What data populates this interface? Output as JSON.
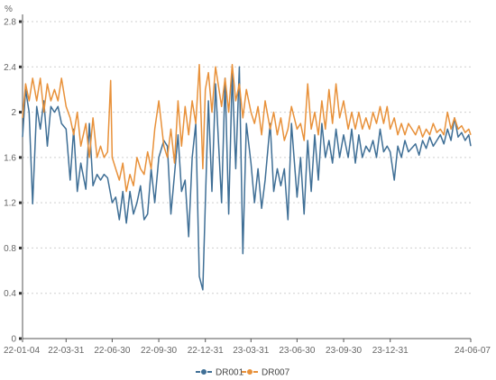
{
  "chart_data": {
    "type": "line",
    "title": "",
    "xlabel": "",
    "ylabel": "%",
    "ylim": [
      0,
      2.8
    ],
    "y_ticks": [
      "0",
      "0.4",
      "0.8",
      "1.2",
      "1.6",
      "2",
      "2.4",
      "2.8"
    ],
    "x_range": [
      "2022-01-04",
      "2024-06-07"
    ],
    "x_ticks": [
      "22-01-04",
      "22-03-31",
      "22-06-30",
      "22-09-30",
      "22-12-31",
      "23-03-31",
      "23-06-30",
      "23-09-30",
      "23-12-31",
      "24-06-07"
    ],
    "grid": "horizontal dashed",
    "legend_position": "bottom-center",
    "series": [
      {
        "name": "DR001",
        "color": "#3f6f96",
        "points": [
          [
            "2022-01-04",
            1.78
          ],
          [
            "2022-01-10",
            2.2
          ],
          [
            "2022-01-17",
            2.0
          ],
          [
            "2022-01-24",
            1.19
          ],
          [
            "2022-02-01",
            2.05
          ],
          [
            "2022-02-08",
            1.85
          ],
          [
            "2022-02-15",
            2.1
          ],
          [
            "2022-02-22",
            1.7
          ],
          [
            "2022-03-01",
            2.05
          ],
          [
            "2022-03-08",
            2.0
          ],
          [
            "2022-03-15",
            2.05
          ],
          [
            "2022-03-22",
            1.9
          ],
          [
            "2022-03-31",
            1.85
          ],
          [
            "2022-04-08",
            1.4
          ],
          [
            "2022-04-15",
            1.85
          ],
          [
            "2022-04-22",
            1.3
          ],
          [
            "2022-04-29",
            1.55
          ],
          [
            "2022-05-09",
            1.32
          ],
          [
            "2022-05-16",
            1.9
          ],
          [
            "2022-05-23",
            1.35
          ],
          [
            "2022-05-31",
            1.45
          ],
          [
            "2022-06-07",
            1.4
          ],
          [
            "2022-06-14",
            1.45
          ],
          [
            "2022-06-21",
            1.42
          ],
          [
            "2022-06-30",
            1.2
          ],
          [
            "2022-07-07",
            1.25
          ],
          [
            "2022-07-14",
            1.05
          ],
          [
            "2022-07-21",
            1.3
          ],
          [
            "2022-07-28",
            1.02
          ],
          [
            "2022-08-04",
            1.3
          ],
          [
            "2022-08-11",
            1.1
          ],
          [
            "2022-08-18",
            1.2
          ],
          [
            "2022-08-25",
            1.35
          ],
          [
            "2022-09-01",
            1.05
          ],
          [
            "2022-09-08",
            1.1
          ],
          [
            "2022-09-15",
            1.5
          ],
          [
            "2022-09-22",
            1.2
          ],
          [
            "2022-09-30",
            1.6
          ],
          [
            "2022-10-10",
            1.75
          ],
          [
            "2022-10-17",
            1.7
          ],
          [
            "2022-10-24",
            1.1
          ],
          [
            "2022-10-31",
            1.45
          ],
          [
            "2022-11-07",
            1.8
          ],
          [
            "2022-11-14",
            1.3
          ],
          [
            "2022-11-21",
            1.4
          ],
          [
            "2022-11-28",
            0.9
          ],
          [
            "2022-12-05",
            1.6
          ],
          [
            "2022-12-12",
            1.9
          ],
          [
            "2022-12-19",
            0.55
          ],
          [
            "2022-12-26",
            0.43
          ],
          [
            "2022-12-31",
            1.2
          ],
          [
            "2023-01-06",
            2.1
          ],
          [
            "2023-01-13",
            1.3
          ],
          [
            "2023-01-20",
            2.25
          ],
          [
            "2023-02-01",
            1.2
          ],
          [
            "2023-02-08",
            2.3
          ],
          [
            "2023-02-15",
            1.1
          ],
          [
            "2023-02-22",
            2.35
          ],
          [
            "2023-03-01",
            1.5
          ],
          [
            "2023-03-08",
            2.4
          ],
          [
            "2023-03-15",
            0.75
          ],
          [
            "2023-03-22",
            1.9
          ],
          [
            "2023-03-31",
            1.55
          ],
          [
            "2023-04-07",
            1.2
          ],
          [
            "2023-04-14",
            1.5
          ],
          [
            "2023-04-21",
            1.15
          ],
          [
            "2023-04-28",
            1.4
          ],
          [
            "2023-05-08",
            1.9
          ],
          [
            "2023-05-15",
            1.3
          ],
          [
            "2023-05-22",
            1.5
          ],
          [
            "2023-05-29",
            1.35
          ],
          [
            "2023-06-05",
            1.5
          ],
          [
            "2023-06-12",
            1.05
          ],
          [
            "2023-06-19",
            1.9
          ],
          [
            "2023-06-30",
            1.25
          ],
          [
            "2023-07-07",
            1.6
          ],
          [
            "2023-07-14",
            1.1
          ],
          [
            "2023-07-21",
            1.75
          ],
          [
            "2023-07-28",
            1.3
          ],
          [
            "2023-08-04",
            1.8
          ],
          [
            "2023-08-11",
            1.4
          ],
          [
            "2023-08-18",
            1.9
          ],
          [
            "2023-08-25",
            1.6
          ],
          [
            "2023-09-01",
            1.75
          ],
          [
            "2023-09-08",
            1.55
          ],
          [
            "2023-09-15",
            1.85
          ],
          [
            "2023-09-22",
            1.6
          ],
          [
            "2023-09-30",
            1.8
          ],
          [
            "2023-10-09",
            1.6
          ],
          [
            "2023-10-16",
            1.85
          ],
          [
            "2023-10-23",
            1.55
          ],
          [
            "2023-10-30",
            1.8
          ],
          [
            "2023-11-06",
            1.6
          ],
          [
            "2023-11-13",
            1.7
          ],
          [
            "2023-11-20",
            1.65
          ],
          [
            "2023-11-27",
            1.75
          ],
          [
            "2023-12-04",
            1.6
          ],
          [
            "2023-12-11",
            1.85
          ],
          [
            "2023-12-18",
            1.65
          ],
          [
            "2023-12-25",
            1.7
          ],
          [
            "2023-12-31",
            1.65
          ],
          [
            "2024-01-08",
            1.4
          ],
          [
            "2024-01-15",
            1.7
          ],
          [
            "2024-01-22",
            1.6
          ],
          [
            "2024-01-29",
            1.75
          ],
          [
            "2024-02-05",
            1.65
          ],
          [
            "2024-02-19",
            1.72
          ],
          [
            "2024-02-26",
            1.62
          ],
          [
            "2024-03-04",
            1.75
          ],
          [
            "2024-03-11",
            1.68
          ],
          [
            "2024-03-18",
            1.78
          ],
          [
            "2024-03-25",
            1.7
          ],
          [
            "2024-04-01",
            1.75
          ],
          [
            "2024-04-08",
            1.8
          ],
          [
            "2024-04-15",
            1.72
          ],
          [
            "2024-04-22",
            1.85
          ],
          [
            "2024-04-29",
            1.75
          ],
          [
            "2024-05-06",
            1.95
          ],
          [
            "2024-05-13",
            1.78
          ],
          [
            "2024-05-20",
            1.82
          ],
          [
            "2024-05-27",
            1.75
          ],
          [
            "2024-06-03",
            1.8
          ],
          [
            "2024-06-07",
            1.7
          ]
        ]
      },
      {
        "name": "DR007",
        "color": "#e8913a",
        "points": [
          [
            "2022-01-04",
            1.95
          ],
          [
            "2022-01-10",
            2.25
          ],
          [
            "2022-01-17",
            2.1
          ],
          [
            "2022-01-24",
            2.3
          ],
          [
            "2022-02-01",
            2.1
          ],
          [
            "2022-02-08",
            2.3
          ],
          [
            "2022-02-15",
            2.0
          ],
          [
            "2022-02-22",
            2.25
          ],
          [
            "2022-03-01",
            2.1
          ],
          [
            "2022-03-08",
            2.2
          ],
          [
            "2022-03-15",
            2.1
          ],
          [
            "2022-03-22",
            2.3
          ],
          [
            "2022-03-31",
            2.05
          ],
          [
            "2022-04-08",
            1.95
          ],
          [
            "2022-04-15",
            1.8
          ],
          [
            "2022-04-22",
            2.0
          ],
          [
            "2022-04-29",
            1.7
          ],
          [
            "2022-05-09",
            1.9
          ],
          [
            "2022-05-16",
            1.6
          ],
          [
            "2022-05-23",
            1.95
          ],
          [
            "2022-05-31",
            1.6
          ],
          [
            "2022-06-07",
            1.7
          ],
          [
            "2022-06-14",
            1.6
          ],
          [
            "2022-06-21",
            1.65
          ],
          [
            "2022-06-27",
            2.28
          ],
          [
            "2022-06-30",
            1.6
          ],
          [
            "2022-07-07",
            1.5
          ],
          [
            "2022-07-14",
            1.4
          ],
          [
            "2022-07-21",
            1.55
          ],
          [
            "2022-07-28",
            1.3
          ],
          [
            "2022-08-04",
            1.45
          ],
          [
            "2022-08-11",
            1.35
          ],
          [
            "2022-08-18",
            1.6
          ],
          [
            "2022-08-25",
            1.5
          ],
          [
            "2022-09-01",
            1.45
          ],
          [
            "2022-09-08",
            1.65
          ],
          [
            "2022-09-15",
            1.5
          ],
          [
            "2022-09-22",
            1.85
          ],
          [
            "2022-09-30",
            2.1
          ],
          [
            "2022-10-10",
            1.7
          ],
          [
            "2022-10-17",
            1.6
          ],
          [
            "2022-10-24",
            1.85
          ],
          [
            "2022-10-31",
            1.55
          ],
          [
            "2022-11-07",
            2.1
          ],
          [
            "2022-11-14",
            1.7
          ],
          [
            "2022-11-21",
            2.05
          ],
          [
            "2022-11-28",
            1.8
          ],
          [
            "2022-12-05",
            2.1
          ],
          [
            "2022-12-12",
            1.9
          ],
          [
            "2022-12-19",
            2.42
          ],
          [
            "2022-12-26",
            1.5
          ],
          [
            "2022-12-31",
            2.2
          ],
          [
            "2023-01-06",
            2.35
          ],
          [
            "2023-01-13",
            2.0
          ],
          [
            "2023-01-20",
            2.4
          ],
          [
            "2023-02-01",
            2.05
          ],
          [
            "2023-02-08",
            2.3
          ],
          [
            "2023-02-15",
            2.0
          ],
          [
            "2023-02-22",
            2.42
          ],
          [
            "2023-03-01",
            2.1
          ],
          [
            "2023-03-08",
            2.25
          ],
          [
            "2023-03-15",
            1.95
          ],
          [
            "2023-03-22",
            2.2
          ],
          [
            "2023-03-31",
            2.0
          ],
          [
            "2023-04-07",
            1.9
          ],
          [
            "2023-04-14",
            2.05
          ],
          [
            "2023-04-21",
            1.8
          ],
          [
            "2023-04-28",
            2.1
          ],
          [
            "2023-05-08",
            1.85
          ],
          [
            "2023-05-15",
            2.0
          ],
          [
            "2023-05-22",
            1.8
          ],
          [
            "2023-05-29",
            1.95
          ],
          [
            "2023-06-05",
            1.75
          ],
          [
            "2023-06-12",
            1.85
          ],
          [
            "2023-06-19",
            2.05
          ],
          [
            "2023-06-30",
            1.85
          ],
          [
            "2023-07-07",
            1.9
          ],
          [
            "2023-07-14",
            1.75
          ],
          [
            "2023-07-21",
            2.25
          ],
          [
            "2023-07-28",
            1.85
          ],
          [
            "2023-08-04",
            2.0
          ],
          [
            "2023-08-11",
            1.8
          ],
          [
            "2023-08-18",
            2.1
          ],
          [
            "2023-08-25",
            1.85
          ],
          [
            "2023-09-01",
            2.2
          ],
          [
            "2023-09-08",
            1.9
          ],
          [
            "2023-09-15",
            2.25
          ],
          [
            "2023-09-22",
            1.95
          ],
          [
            "2023-09-30",
            2.1
          ],
          [
            "2023-10-09",
            1.85
          ],
          [
            "2023-10-16",
            2.0
          ],
          [
            "2023-10-23",
            1.85
          ],
          [
            "2023-10-30",
            2.0
          ],
          [
            "2023-11-06",
            1.85
          ],
          [
            "2023-11-13",
            1.95
          ],
          [
            "2023-11-20",
            1.85
          ],
          [
            "2023-11-27",
            2.0
          ],
          [
            "2023-12-04",
            1.9
          ],
          [
            "2023-12-11",
            2.05
          ],
          [
            "2023-12-18",
            1.9
          ],
          [
            "2023-12-25",
            2.05
          ],
          [
            "2023-12-31",
            1.85
          ],
          [
            "2024-01-08",
            1.95
          ],
          [
            "2024-01-15",
            1.8
          ],
          [
            "2024-01-22",
            1.9
          ],
          [
            "2024-01-29",
            1.8
          ],
          [
            "2024-02-05",
            1.9
          ],
          [
            "2024-02-19",
            1.8
          ],
          [
            "2024-02-26",
            1.88
          ],
          [
            "2024-03-04",
            1.78
          ],
          [
            "2024-03-11",
            1.85
          ],
          [
            "2024-03-18",
            1.8
          ],
          [
            "2024-03-25",
            1.9
          ],
          [
            "2024-04-01",
            1.82
          ],
          [
            "2024-04-08",
            1.85
          ],
          [
            "2024-04-15",
            1.8
          ],
          [
            "2024-04-22",
            2.0
          ],
          [
            "2024-04-29",
            1.85
          ],
          [
            "2024-05-06",
            1.95
          ],
          [
            "2024-05-13",
            1.85
          ],
          [
            "2024-05-20",
            1.88
          ],
          [
            "2024-05-27",
            1.82
          ],
          [
            "2024-06-03",
            1.85
          ],
          [
            "2024-06-07",
            1.8
          ]
        ]
      }
    ]
  }
}
